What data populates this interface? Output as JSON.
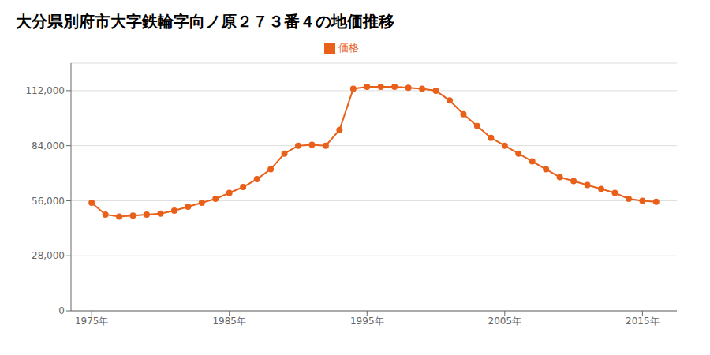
{
  "chart_data": {
    "type": "line",
    "title": "大分県別府市大字鉄輪字向ノ原２７３番４の地価推移",
    "x": [
      1975,
      1976,
      1977,
      1978,
      1979,
      1980,
      1981,
      1982,
      1983,
      1984,
      1985,
      1986,
      1987,
      1988,
      1989,
      1990,
      1991,
      1992,
      1993,
      1994,
      1995,
      1996,
      1997,
      1998,
      1999,
      2000,
      2001,
      2002,
      2003,
      2004,
      2005,
      2006,
      2007,
      2008,
      2009,
      2010,
      2011,
      2012,
      2013,
      2014,
      2015,
      2016
    ],
    "series": [
      {
        "name": "価格",
        "color": "#e8601a",
        "marker": "circle",
        "values": [
          55000,
          49000,
          48000,
          48500,
          49000,
          49500,
          51000,
          53000,
          55000,
          57000,
          60000,
          63000,
          67000,
          72000,
          80000,
          84000,
          84500,
          84000,
          92000,
          113000,
          114000,
          114000,
          114000,
          113500,
          113000,
          112000,
          107000,
          100000,
          94000,
          88000,
          84000,
          80000,
          76000,
          72000,
          68000,
          66000,
          64000,
          62000,
          60000,
          57000,
          56000,
          55500
        ]
      }
    ],
    "xlim": [
      1973.5,
      2017.5
    ],
    "xticks": [
      {
        "value": 1975,
        "label": "1975年"
      },
      {
        "value": 1985,
        "label": "1985年"
      },
      {
        "value": 1995,
        "label": "1995年"
      },
      {
        "value": 2005,
        "label": "2005年"
      },
      {
        "value": 2015,
        "label": "2015年"
      }
    ],
    "ylim": [
      0,
      126000
    ],
    "yticks": [
      0,
      {
        "value": 28000,
        "label": "28,000"
      },
      {
        "value": 56000,
        "label": "56,000"
      },
      {
        "value": 84000,
        "label": "84,000"
      },
      {
        "value": 112000,
        "label": "112,000"
      }
    ],
    "grid": "y",
    "legend": "top"
  }
}
